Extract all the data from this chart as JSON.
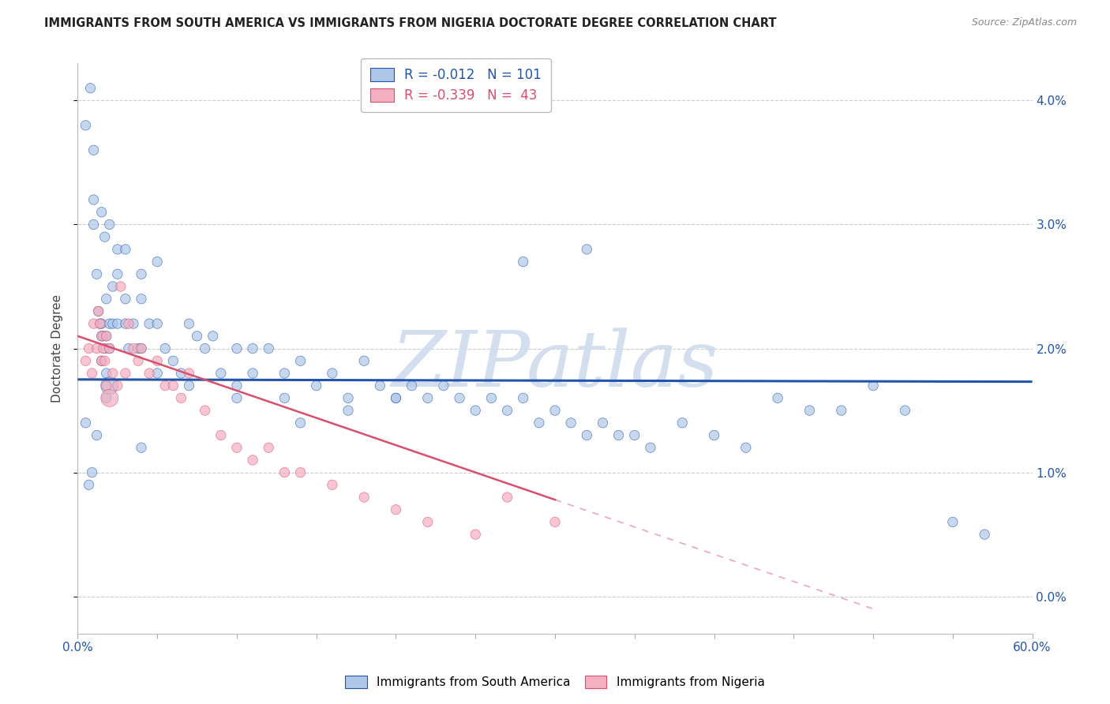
{
  "title": "IMMIGRANTS FROM SOUTH AMERICA VS IMMIGRANTS FROM NIGERIA DOCTORATE DEGREE CORRELATION CHART",
  "source": "Source: ZipAtlas.com",
  "ylabel": "Doctorate Degree",
  "legend_blue_r": "-0.012",
  "legend_blue_n": "101",
  "legend_pink_r": "-0.339",
  "legend_pink_n": "43",
  "blue_color": "#aec6e8",
  "pink_color": "#f4afc0",
  "blue_line_color": "#2255aa",
  "pink_line_color": "#d94f6e",
  "watermark_color": "#ccdaec",
  "background_color": "#ffffff",
  "grid_color": "#cccccc",
  "xlim": [
    0.0,
    0.6
  ],
  "ylim": [
    -0.003,
    0.043
  ],
  "blue_line_y_intercept": 0.0175,
  "blue_line_slope": -0.0003,
  "pink_line_y_intercept": 0.021,
  "pink_line_slope": -0.044,
  "blue_scatter_x": [
    0.005,
    0.008,
    0.01,
    0.01,
    0.012,
    0.013,
    0.014,
    0.015,
    0.015,
    0.015,
    0.016,
    0.017,
    0.018,
    0.018,
    0.018,
    0.02,
    0.02,
    0.02,
    0.022,
    0.022,
    0.025,
    0.025,
    0.03,
    0.03,
    0.032,
    0.035,
    0.038,
    0.04,
    0.04,
    0.045,
    0.05,
    0.05,
    0.055,
    0.06,
    0.065,
    0.07,
    0.075,
    0.08,
    0.085,
    0.09,
    0.1,
    0.1,
    0.11,
    0.11,
    0.12,
    0.13,
    0.13,
    0.14,
    0.15,
    0.16,
    0.17,
    0.18,
    0.19,
    0.2,
    0.21,
    0.22,
    0.23,
    0.24,
    0.25,
    0.26,
    0.27,
    0.28,
    0.29,
    0.3,
    0.31,
    0.32,
    0.33,
    0.34,
    0.35,
    0.36,
    0.38,
    0.4,
    0.42,
    0.44,
    0.46,
    0.48,
    0.5,
    0.52,
    0.55,
    0.57,
    0.28,
    0.32,
    0.2,
    0.17,
    0.14,
    0.1,
    0.07,
    0.04,
    0.018,
    0.012,
    0.009,
    0.007,
    0.005,
    0.01,
    0.015,
    0.017,
    0.02,
    0.025,
    0.03,
    0.04,
    0.05
  ],
  "blue_scatter_y": [
    0.038,
    0.041,
    0.036,
    0.032,
    0.026,
    0.023,
    0.022,
    0.022,
    0.021,
    0.019,
    0.021,
    0.02,
    0.024,
    0.021,
    0.018,
    0.022,
    0.02,
    0.017,
    0.025,
    0.022,
    0.026,
    0.022,
    0.024,
    0.022,
    0.02,
    0.022,
    0.02,
    0.024,
    0.02,
    0.022,
    0.022,
    0.018,
    0.02,
    0.019,
    0.018,
    0.022,
    0.021,
    0.02,
    0.021,
    0.018,
    0.02,
    0.017,
    0.02,
    0.018,
    0.02,
    0.018,
    0.016,
    0.019,
    0.017,
    0.018,
    0.016,
    0.019,
    0.017,
    0.016,
    0.017,
    0.016,
    0.017,
    0.016,
    0.015,
    0.016,
    0.015,
    0.016,
    0.014,
    0.015,
    0.014,
    0.013,
    0.014,
    0.013,
    0.013,
    0.012,
    0.014,
    0.013,
    0.012,
    0.016,
    0.015,
    0.015,
    0.017,
    0.015,
    0.006,
    0.005,
    0.027,
    0.028,
    0.016,
    0.015,
    0.014,
    0.016,
    0.017,
    0.012,
    0.016,
    0.013,
    0.01,
    0.009,
    0.014,
    0.03,
    0.031,
    0.029,
    0.03,
    0.028,
    0.028,
    0.026,
    0.027
  ],
  "blue_scatter_sizes": [
    80,
    80,
    80,
    80,
    80,
    80,
    80,
    80,
    80,
    80,
    80,
    80,
    80,
    80,
    80,
    80,
    80,
    250,
    80,
    80,
    80,
    80,
    80,
    80,
    80,
    80,
    80,
    80,
    80,
    80,
    80,
    80,
    80,
    80,
    80,
    80,
    80,
    80,
    80,
    80,
    80,
    80,
    80,
    80,
    80,
    80,
    80,
    80,
    80,
    80,
    80,
    80,
    80,
    80,
    80,
    80,
    80,
    80,
    80,
    80,
    80,
    80,
    80,
    80,
    80,
    80,
    80,
    80,
    80,
    80,
    80,
    80,
    80,
    80,
    80,
    80,
    80,
    80,
    80,
    80,
    80,
    80,
    80,
    80,
    80,
    80,
    80,
    80,
    80,
    80,
    80,
    80,
    80,
    80,
    80,
    80,
    80,
    80,
    80,
    80,
    80
  ],
  "pink_scatter_x": [
    0.005,
    0.007,
    0.009,
    0.01,
    0.012,
    0.013,
    0.014,
    0.015,
    0.015,
    0.016,
    0.017,
    0.018,
    0.018,
    0.02,
    0.02,
    0.022,
    0.025,
    0.027,
    0.03,
    0.032,
    0.035,
    0.038,
    0.04,
    0.045,
    0.05,
    0.055,
    0.06,
    0.065,
    0.07,
    0.08,
    0.09,
    0.1,
    0.11,
    0.12,
    0.13,
    0.14,
    0.16,
    0.18,
    0.2,
    0.22,
    0.25,
    0.27,
    0.3
  ],
  "pink_scatter_y": [
    0.019,
    0.02,
    0.018,
    0.022,
    0.02,
    0.023,
    0.022,
    0.021,
    0.019,
    0.02,
    0.019,
    0.021,
    0.017,
    0.02,
    0.016,
    0.018,
    0.017,
    0.025,
    0.018,
    0.022,
    0.02,
    0.019,
    0.02,
    0.018,
    0.019,
    0.017,
    0.017,
    0.016,
    0.018,
    0.015,
    0.013,
    0.012,
    0.011,
    0.012,
    0.01,
    0.01,
    0.009,
    0.008,
    0.007,
    0.006,
    0.005,
    0.008,
    0.006
  ],
  "pink_scatter_sizes": [
    80,
    80,
    80,
    80,
    80,
    80,
    80,
    80,
    80,
    80,
    80,
    80,
    80,
    80,
    250,
    80,
    80,
    80,
    80,
    80,
    80,
    80,
    80,
    80,
    80,
    80,
    80,
    80,
    80,
    80,
    80,
    80,
    80,
    80,
    80,
    80,
    80,
    80,
    80,
    80,
    80,
    80,
    80
  ]
}
